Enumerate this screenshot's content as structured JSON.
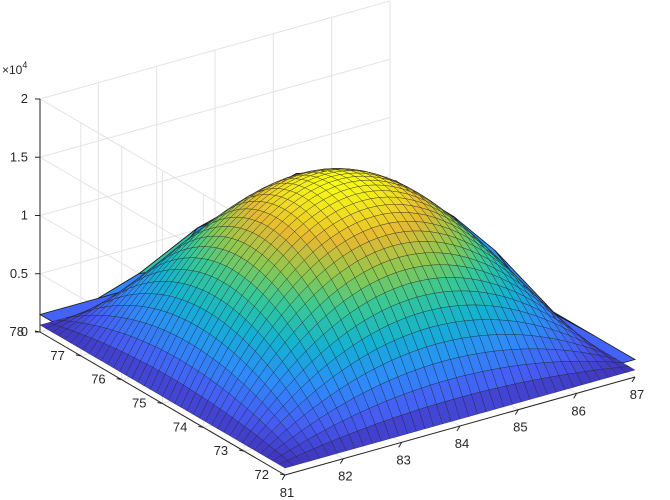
{
  "chart_data": {
    "type": "surface3d",
    "title": "",
    "xlabel": "",
    "ylabel": "",
    "zlabel": "",
    "z_exponent_label": "×10",
    "z_exponent": "4",
    "x_axis": {
      "range": [
        81,
        87
      ],
      "ticks": [
        "81",
        "82",
        "83",
        "84",
        "85",
        "86",
        "87"
      ]
    },
    "y_axis": {
      "range": [
        72,
        78
      ],
      "ticks": [
        "72",
        "73",
        "74",
        "75",
        "76",
        "77",
        "78"
      ]
    },
    "z_axis": {
      "range": [
        0,
        20000
      ],
      "ticks": [
        "0",
        "0.5",
        "1",
        "1.5",
        "2"
      ]
    },
    "grid": true,
    "colormap": "parula",
    "series": [
      {
        "kind": "coarse surface",
        "x": [
          81,
          82,
          83,
          84,
          85,
          86,
          87
        ],
        "y": [
          72,
          73,
          74,
          75,
          76,
          77,
          78
        ],
        "z_peak": 15000,
        "z_edge_min": 1500
      },
      {
        "kind": "fine surface",
        "x_range": [
          81,
          87
        ],
        "y_range": [
          72,
          78
        ],
        "z_peak": 15000,
        "z_edge_min": 600
      }
    ]
  }
}
